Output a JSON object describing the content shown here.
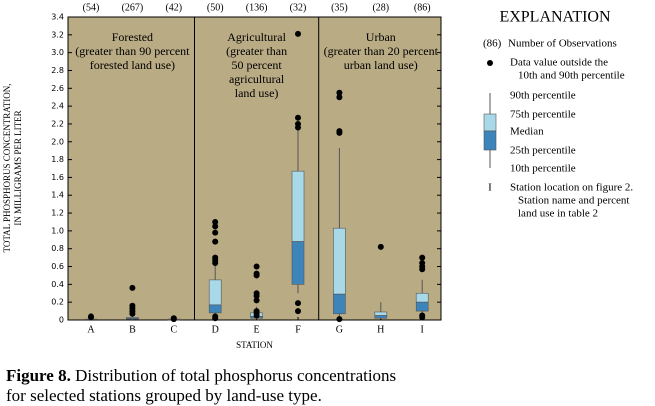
{
  "chart_data": {
    "type": "box",
    "y_label": [
      "TOTAL PHOSPHORUS CONCENTRATION,",
      "IN MILLIGRAMS PER LITER"
    ],
    "x_label": "STATION",
    "ylim": [
      0,
      3.4
    ],
    "yticks": [
      0,
      0.2,
      0.4,
      0.6,
      0.8,
      {
        "value": 1,
        "label": "1.0"
      },
      1.2,
      1.4,
      1.6,
      1.8,
      {
        "value": 2,
        "label": "2.0"
      },
      2.2,
      2.4,
      2.6,
      2.8,
      {
        "value": 3,
        "label": "3.0"
      },
      3.2,
      3.4
    ],
    "background": "#b9ab84",
    "upper_color": "#a9d9e9",
    "lower_color": "#3d84ba",
    "groups": [
      {
        "lines": [
          "Forested",
          "(greater than 90 percent",
          "forested land use)"
        ],
        "stations": [
          {
            "name": "A",
            "count": "(54)",
            "p10": 0,
            "p25": 0.005,
            "median": 0.01,
            "p75": 0.01,
            "p90": 0.02,
            "outliers": [
              0.03,
              0.04
            ]
          },
          {
            "name": "B",
            "count": "(267)",
            "p10": 0,
            "p25": 0.01,
            "median": 0.02,
            "p75": 0.03,
            "p90": 0.05,
            "outliers": [
              0.07,
              0.1,
              0.13,
              0.16,
              0.36
            ]
          },
          {
            "name": "C",
            "count": "(42)",
            "p10": 0,
            "p25": 0,
            "median": 0.005,
            "p75": 0.01,
            "p90": 0.01,
            "outliers": [
              0.01,
              0.02
            ]
          }
        ]
      },
      {
        "lines": [
          "Agricultural",
          "(greater than",
          "50 percent",
          "agricultural",
          "land use)"
        ],
        "stations": [
          {
            "name": "D",
            "count": "(50)",
            "p10": 0.03,
            "p25": 0.08,
            "median": 0.17,
            "p75": 0.45,
            "p90": 0.62,
            "outliers": [
              0.02,
              0.04,
              0.64,
              0.67,
              0.7,
              0.88,
              0.98,
              1.05,
              1.1
            ]
          },
          {
            "name": "E",
            "count": "(136)",
            "p10": 0.01,
            "p25": 0.02,
            "median": 0.04,
            "p75": 0.08,
            "p90": 0.15,
            "outliers": [
              0.05,
              0.08,
              0.1,
              0.22,
              0.27,
              0.3,
              0.5,
              0.52,
              0.6
            ]
          },
          {
            "name": "F",
            "count": "(32)",
            "p10": 0.3,
            "p25": 0.4,
            "median": 0.88,
            "p75": 1.67,
            "p90": 2.15,
            "outliers": [
              0.1,
              0.19,
              2.16,
              2.2,
              2.27,
              3.21
            ]
          }
        ]
      },
      {
        "lines": [
          "Urban",
          "(greater than 20 percent",
          "urban land use)"
        ],
        "stations": [
          {
            "name": "G",
            "count": "(35)",
            "p10": 0.03,
            "p25": 0.07,
            "median": 0.29,
            "p75": 1.03,
            "p90": 1.93,
            "outliers": [
              0.01,
              2.1,
              2.12,
              2.5,
              2.55
            ]
          },
          {
            "name": "H",
            "count": "(28)",
            "p10": 0.01,
            "p25": 0.02,
            "median": 0.05,
            "p75": 0.09,
            "p90": 0.2,
            "outliers": [
              0.82
            ]
          },
          {
            "name": "I",
            "count": "(86)",
            "p10": 0.05,
            "p25": 0.1,
            "median": 0.2,
            "p75": 0.3,
            "p90": 0.45,
            "outliers": [
              0.03,
              0.05,
              0.57,
              0.6,
              0.64,
              0.7
            ]
          }
        ]
      }
    ]
  },
  "legend": {
    "title": "EXPLANATION",
    "count_sample": "(86)",
    "count_text": "Number of Observations",
    "outlier_text": [
      "Data value outside the",
      "10th and 90th percentile"
    ],
    "box_labels": [
      "90th percentile",
      "75th percentile",
      "Median",
      "25th percentile",
      "10th percentile"
    ],
    "station_symbol": "I",
    "station_text": [
      "Station location on figure 2.",
      "Station name and percent",
      "land use in table 2"
    ]
  },
  "caption": {
    "label": "Figure 8.",
    "lines": [
      "Distribution of total phosphorus concentrations",
      "for selected stations grouped by land-use type."
    ]
  }
}
